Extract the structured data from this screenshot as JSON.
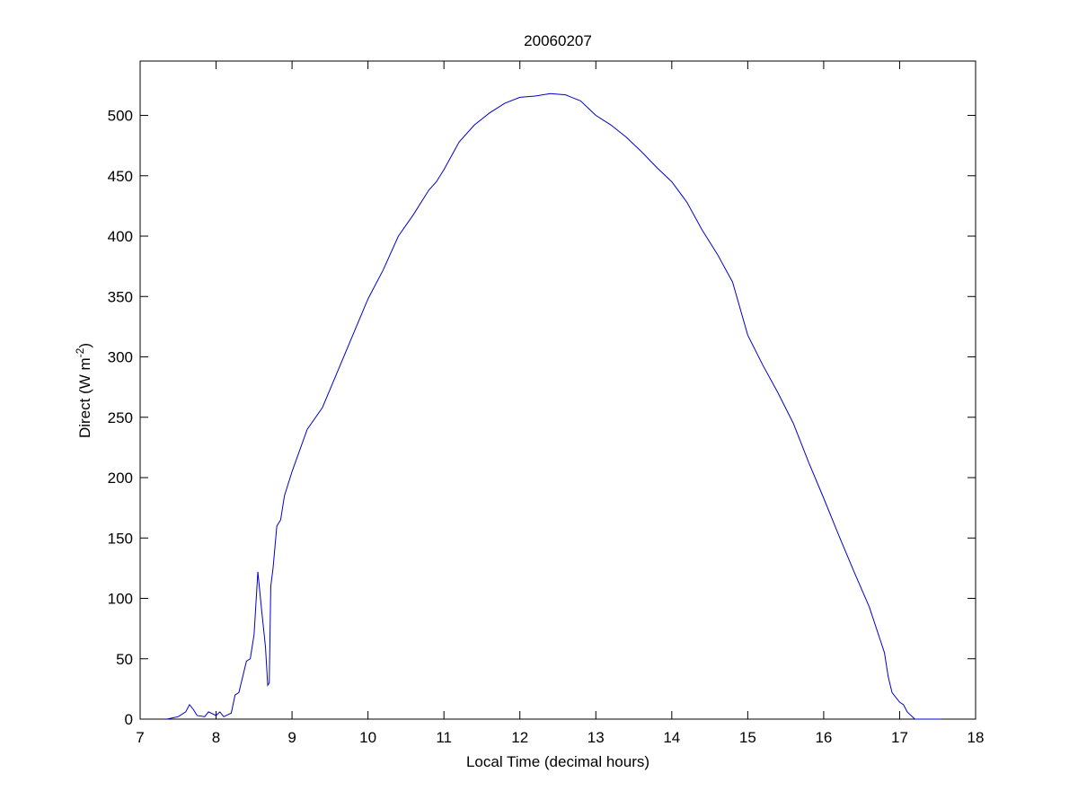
{
  "chart_data": {
    "type": "line",
    "title": "20060207",
    "xlabel": "Local Time (decimal hours)",
    "ylabel": {
      "text": "Direct (W m",
      "superscript": "-2",
      "suffix": ")"
    },
    "xlim": [
      7,
      18
    ],
    "ylim": [
      0,
      545
    ],
    "xticks": [
      7,
      8,
      9,
      10,
      11,
      12,
      13,
      14,
      15,
      16,
      17,
      18
    ],
    "yticks": [
      0,
      50,
      100,
      150,
      200,
      250,
      300,
      350,
      400,
      450,
      500
    ],
    "grid": false,
    "series": [
      {
        "color": "#0000cc",
        "x": [
          7.35,
          7.5,
          7.6,
          7.65,
          7.7,
          7.75,
          7.85,
          7.9,
          8.0,
          8.05,
          8.1,
          8.2,
          8.25,
          8.3,
          8.35,
          8.4,
          8.45,
          8.5,
          8.55,
          8.6,
          8.65,
          8.68,
          8.7,
          8.72,
          8.75,
          8.8,
          8.85,
          8.9,
          9.0,
          9.2,
          9.4,
          9.6,
          9.8,
          10.0,
          10.2,
          10.4,
          10.6,
          10.8,
          10.9,
          11.0,
          11.2,
          11.4,
          11.6,
          11.8,
          12.0,
          12.2,
          12.4,
          12.6,
          12.8,
          13.0,
          13.2,
          13.4,
          13.6,
          13.8,
          14.0,
          14.2,
          14.4,
          14.6,
          14.8,
          15.0,
          15.2,
          15.4,
          15.6,
          15.8,
          16.0,
          16.2,
          16.4,
          16.6,
          16.8,
          16.85,
          16.9,
          17.0,
          17.05,
          17.1,
          17.2,
          17.55
        ],
        "values": [
          0,
          2,
          6,
          12,
          8,
          3,
          2,
          6,
          3,
          6,
          2,
          5,
          20,
          22,
          35,
          48,
          50,
          70,
          122,
          90,
          60,
          28,
          30,
          110,
          125,
          160,
          165,
          185,
          205,
          240,
          258,
          288,
          318,
          348,
          372,
          400,
          418,
          438,
          445,
          455,
          478,
          492,
          502,
          510,
          515,
          516,
          518,
          517,
          512,
          500,
          492,
          482,
          470,
          457,
          445,
          428,
          405,
          385,
          362,
          318,
          293,
          270,
          245,
          213,
          183,
          152,
          122,
          93,
          55,
          35,
          22,
          14,
          12,
          6,
          0,
          0
        ]
      }
    ]
  }
}
